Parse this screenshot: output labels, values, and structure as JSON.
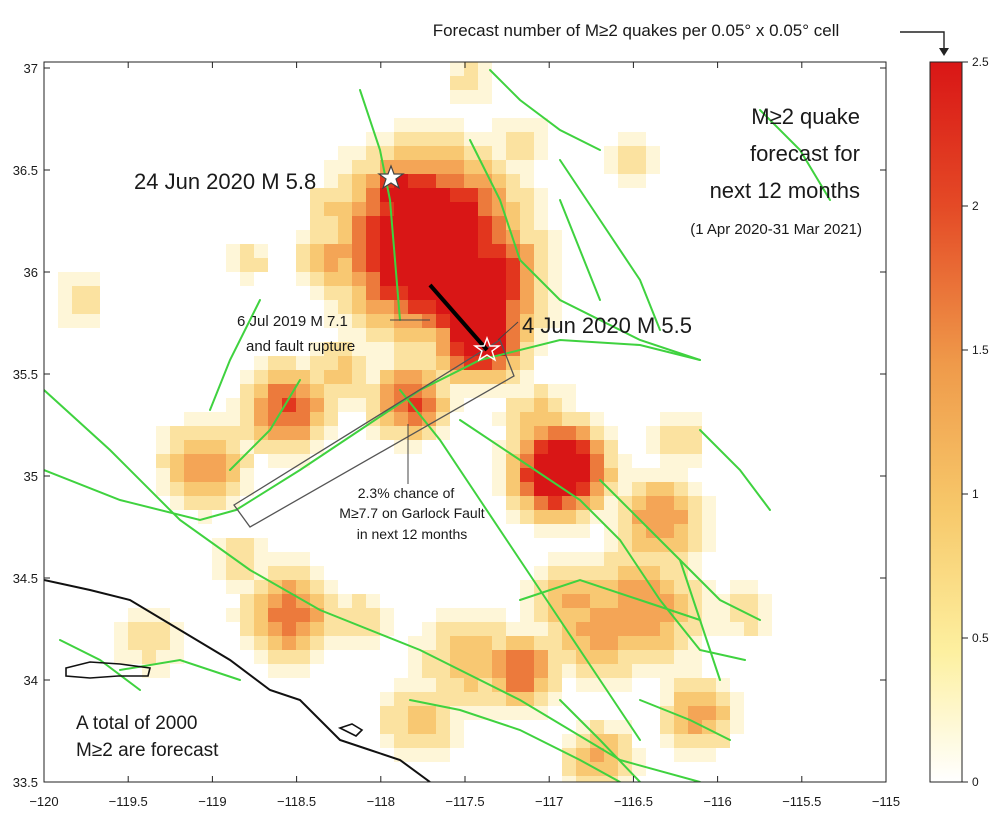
{
  "colorbar": {
    "title": "Forecast number of M≥2 quakes per 0.05° x 0.05° cell",
    "min": 0,
    "max": 2.5,
    "ticks": [
      "2.5",
      "2",
      "1.5",
      "1",
      "0.5",
      "0"
    ],
    "colors": [
      "#ffffff",
      "#fdf0a0",
      "#f7c86a",
      "#ef9a4a",
      "#e44a26",
      "#d91616"
    ]
  },
  "axes": {
    "x_ticks": [
      "−120",
      "−119.5",
      "−119",
      "−118.5",
      "−118",
      "−117.5",
      "−117",
      "−116.5",
      "−116",
      "−115.5",
      "−115"
    ],
    "y_ticks": [
      "37",
      "36.5",
      "36",
      "35.5",
      "35",
      "34.5",
      "34",
      "33.5"
    ]
  },
  "title": {
    "line1": "M≥2 quake",
    "line2": "forecast for",
    "line3": "next 12 months",
    "period": "(1 Apr 2020-31 Mar 2021)"
  },
  "labels": {
    "quake_2020_jun24": "24 Jun 2020 M 5.8",
    "quake_2020_jun4": "4 Jun 2020 M 5.5",
    "rupture_line1": "6 Jul 2019  M 7.1",
    "rupture_line2": "and fault rupture",
    "garlock_line1": "2.3% chance of",
    "garlock_line2": "M≥7.7 on Garlock Fault",
    "garlock_line3": "in next 12 months",
    "total_line1": "A total of 2000",
    "total_line2": "M≥2 are forecast"
  },
  "colors": {
    "fault": "#3fd23f",
    "coast": "#111111",
    "hot": "#d91616"
  }
}
